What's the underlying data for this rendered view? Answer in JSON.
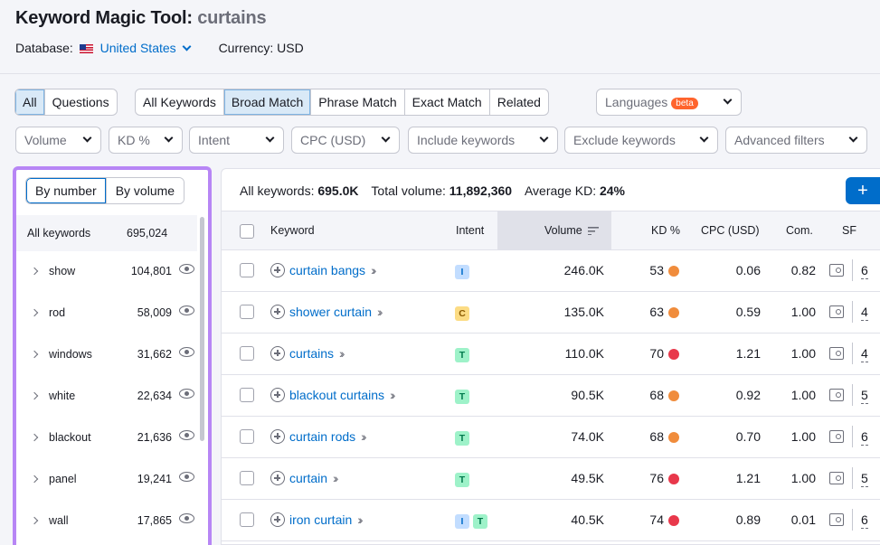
{
  "header": {
    "title_prefix": "Keyword Magic Tool:",
    "title_keyword": "curtains",
    "database_label": "Database:",
    "database_value": "United States",
    "currency": "Currency: USD"
  },
  "tabs_type": [
    {
      "label": "All",
      "active": true
    },
    {
      "label": "Questions",
      "active": false
    }
  ],
  "tabs_match": [
    {
      "label": "All Keywords",
      "active": false
    },
    {
      "label": "Broad Match",
      "active": true
    },
    {
      "label": "Phrase Match",
      "active": false
    },
    {
      "label": "Exact Match",
      "active": false
    },
    {
      "label": "Related",
      "active": false
    }
  ],
  "languages": {
    "label": "Languages",
    "badge": "beta"
  },
  "filters": {
    "volume": "Volume",
    "kd": "KD %",
    "intent": "Intent",
    "cpc": "CPC (USD)",
    "include": "Include keywords",
    "exclude": "Exclude keywords",
    "advanced": "Advanced filters"
  },
  "sidebar": {
    "by_number": "By number",
    "by_volume": "By volume",
    "all_label": "All keywords",
    "all_count": "695,024",
    "items": [
      {
        "label": "show",
        "count": "104,801"
      },
      {
        "label": "rod",
        "count": "58,009"
      },
      {
        "label": "windows",
        "count": "31,662"
      },
      {
        "label": "white",
        "count": "22,634"
      },
      {
        "label": "blackout",
        "count": "21,636"
      },
      {
        "label": "panel",
        "count": "19,241"
      },
      {
        "label": "wall",
        "count": "17,865"
      }
    ]
  },
  "summary": {
    "all_label": "All keywords:",
    "all_value": "695.0K",
    "volume_label": "Total volume:",
    "volume_value": "11,892,360",
    "kd_label": "Average KD:",
    "kd_value": "24%",
    "add_button": "+"
  },
  "table": {
    "columns": {
      "keyword": "Keyword",
      "intent": "Intent",
      "volume": "Volume",
      "kd": "KD %",
      "cpc": "CPC (USD)",
      "com": "Com.",
      "sf": "SF"
    },
    "rows": [
      {
        "keyword": "curtain bangs",
        "intent": [
          "I"
        ],
        "volume": "246.0K",
        "kd": "53",
        "kd_color": "#f08c3c",
        "cpc": "0.06",
        "com": "0.82",
        "sf": "6"
      },
      {
        "keyword": "shower curtain",
        "intent": [
          "C"
        ],
        "volume": "135.0K",
        "kd": "63",
        "kd_color": "#f08c3c",
        "cpc": "0.59",
        "com": "1.00",
        "sf": "4"
      },
      {
        "keyword": "curtains",
        "intent": [
          "T"
        ],
        "volume": "110.0K",
        "kd": "70",
        "kd_color": "#e8384b",
        "cpc": "1.21",
        "com": "1.00",
        "sf": "4"
      },
      {
        "keyword": "blackout curtains",
        "intent": [
          "T"
        ],
        "volume": "90.5K",
        "kd": "68",
        "kd_color": "#f08c3c",
        "cpc": "0.92",
        "com": "1.00",
        "sf": "5"
      },
      {
        "keyword": "curtain rods",
        "intent": [
          "T"
        ],
        "volume": "74.0K",
        "kd": "68",
        "kd_color": "#f08c3c",
        "cpc": "0.70",
        "com": "1.00",
        "sf": "6"
      },
      {
        "keyword": "curtain",
        "intent": [
          "T"
        ],
        "volume": "49.5K",
        "kd": "76",
        "kd_color": "#e8384b",
        "cpc": "1.21",
        "com": "1.00",
        "sf": "5"
      },
      {
        "keyword": "iron curtain",
        "intent": [
          "I",
          "T"
        ],
        "volume": "40.5K",
        "kd": "74",
        "kd_color": "#e8384b",
        "cpc": "0.89",
        "com": "0.01",
        "sf": "6"
      }
    ]
  }
}
